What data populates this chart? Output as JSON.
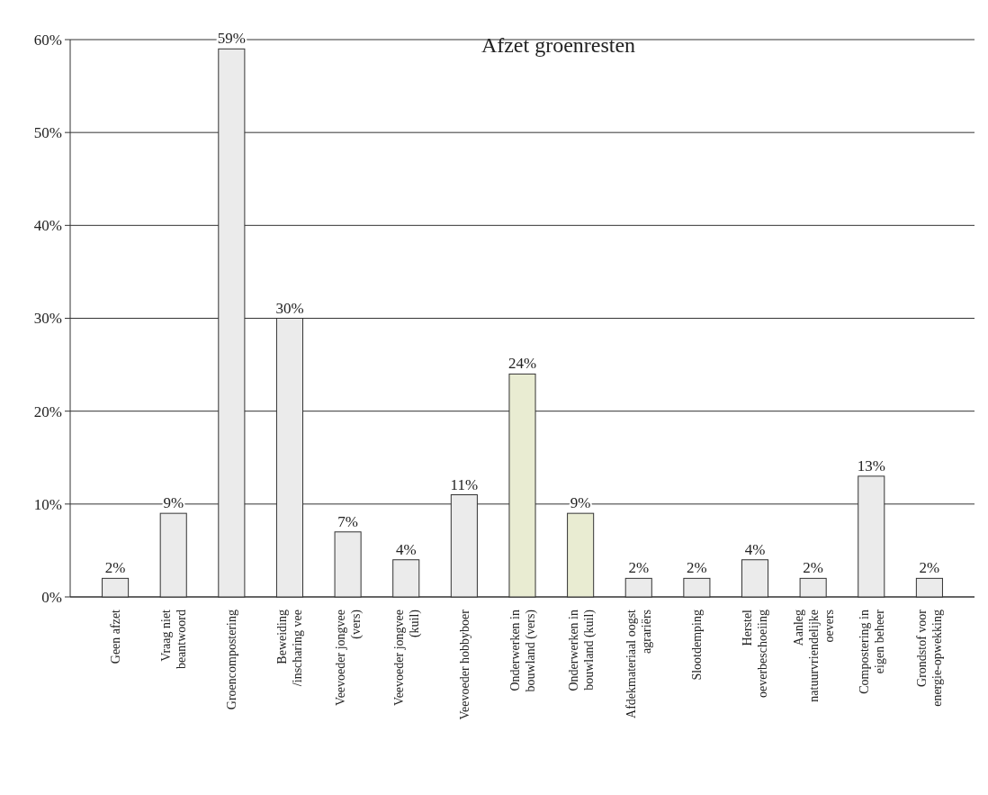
{
  "chart_data": {
    "type": "bar",
    "title": "Afzet groenresten",
    "categories": [
      "Geen afzet",
      "Vraag niet beantwoord",
      "Groencompostering",
      "Beweiding /inscharing vee",
      "Veevoeder jongvee (vers)",
      "Veevoeder jongvee (kuil)",
      "Veevoeder hobbyboer",
      "Onderwerken in bouwland (vers)",
      "Onderwerken in bouwland (kuil)",
      "Afdekmateriaal oogst agrariërs",
      "Slootdemping",
      "Herstel oeverbeschoeiing",
      "Aanleg natuurvriendelijke oevers",
      "Compostering in eigen beheer",
      "Grondstof voor energie-opwekking"
    ],
    "values": [
      2,
      9,
      59,
      30,
      7,
      4,
      11,
      24,
      9,
      2,
      2,
      4,
      2,
      13,
      2
    ],
    "value_labels": [
      "2%",
      "9%",
      "59%",
      "30%",
      "7%",
      "4%",
      "11%",
      "24%",
      "9%",
      "2%",
      "2%",
      "4%",
      "2%",
      "13%",
      "2%"
    ],
    "colors": [
      "#ebebeb",
      "#ebebeb",
      "#ebebeb",
      "#ebebeb",
      "#ebebeb",
      "#ebebeb",
      "#ebebeb",
      "#e9ecd2",
      "#e9ecd2",
      "#ebebeb",
      "#ebebeb",
      "#ebebeb",
      "#ebebeb",
      "#ebebeb",
      "#ebebeb"
    ],
    "ylim": [
      0,
      60
    ],
    "yticks": [
      {
        "value": 0,
        "label": "0%"
      },
      {
        "value": 10,
        "label": "10%"
      },
      {
        "value": 20,
        "label": "20%"
      },
      {
        "value": 30,
        "label": "30%"
      },
      {
        "value": 40,
        "label": "40%"
      },
      {
        "value": 50,
        "label": "50%"
      },
      {
        "value": 60,
        "label": "60%"
      }
    ],
    "grid": "y"
  }
}
